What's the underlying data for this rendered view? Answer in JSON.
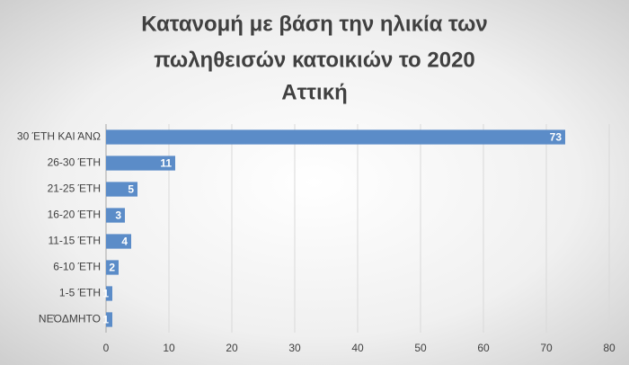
{
  "chart_data": {
    "type": "hbar",
    "title": [
      "Κατανομή με βάση την ηλικία των",
      "πωληθεισών κατοικιών το 2020",
      "Αττική"
    ],
    "categories": [
      "30 ΈΤΗ ΚΑΙ ΆΝΩ",
      "26-30 ΈΤΗ",
      "21-25 ΈΤΗ",
      "16-20 ΈΤΗ",
      "11-15 ΈΤΗ",
      "6-10 ΈΤΗ",
      "1-5 ΈΤΗ",
      "ΝΕΌΔΜΗΤΟ"
    ],
    "values": [
      73,
      11,
      5,
      3,
      4,
      2,
      1,
      1
    ],
    "color": "#5b8cc8",
    "xlim": [
      0,
      80
    ],
    "xticks": [
      0,
      10,
      20,
      30,
      40,
      50,
      60,
      70,
      80
    ],
    "grid": true
  }
}
